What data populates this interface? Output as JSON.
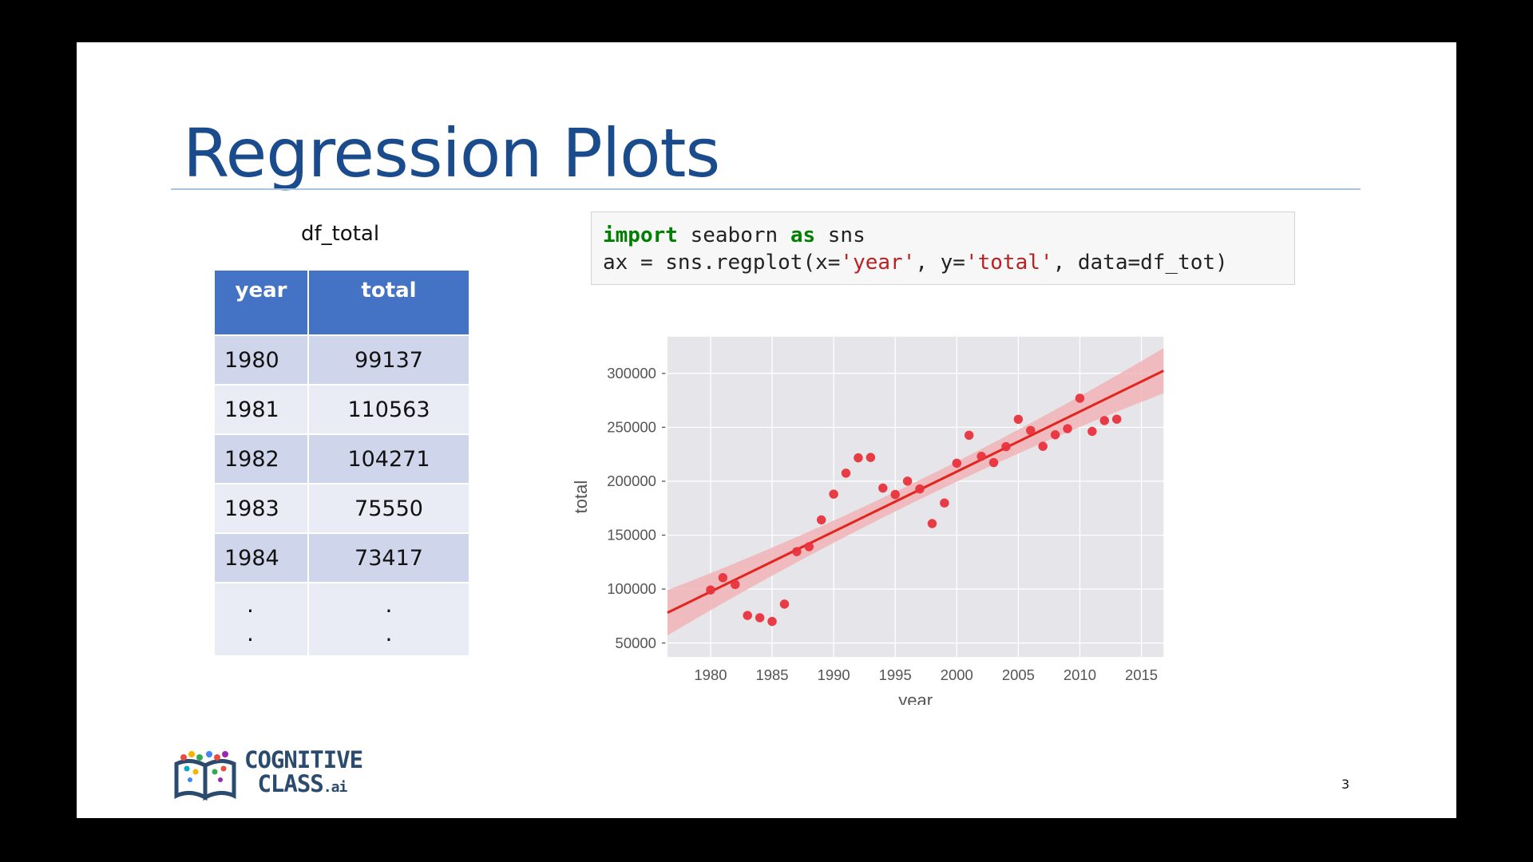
{
  "slide": {
    "title": "Regression Plots",
    "page_number": "3"
  },
  "table": {
    "caption": "df_total",
    "headers": [
      "year",
      "total"
    ],
    "rows": [
      [
        "1980",
        "99137"
      ],
      [
        "1981",
        "110563"
      ],
      [
        "1982",
        "104271"
      ],
      [
        "1983",
        "75550"
      ],
      [
        "1984",
        "73417"
      ]
    ],
    "ellipsis": "."
  },
  "code": {
    "line1": {
      "kw1": "import",
      "mid": " seaborn ",
      "kw2": "as",
      "end": " sns"
    },
    "line2": {
      "a": "ax = sns.regplot(x=",
      "s1": "'year'",
      "b": ", y=",
      "s2": "'total'",
      "c": ", data=df_tot)"
    }
  },
  "logo": {
    "line1": "COGNITIVE",
    "line2": "CLASS",
    "suffix": ".ai"
  },
  "chart_data": {
    "type": "scatter",
    "xlabel": "year",
    "ylabel": "total",
    "xlim": [
      1976.5,
      2016.8
    ],
    "ylim": [
      37000,
      334000
    ],
    "xticks": [
      1980,
      1985,
      1990,
      1995,
      2000,
      2005,
      2010,
      2015
    ],
    "yticks": [
      50000,
      100000,
      150000,
      200000,
      250000,
      300000
    ],
    "grid": true,
    "point_color": "#e8323c",
    "line_color": "#e2261f",
    "band_color": "#f2b0b3",
    "points": [
      [
        1980,
        99137
      ],
      [
        1981,
        110563
      ],
      [
        1982,
        104271
      ],
      [
        1983,
        75550
      ],
      [
        1984,
        73417
      ],
      [
        1985,
        69978
      ],
      [
        1986,
        86048
      ],
      [
        1987,
        134771
      ],
      [
        1988,
        139306
      ],
      [
        1989,
        164139
      ],
      [
        1990,
        188054
      ],
      [
        1991,
        207509
      ],
      [
        1992,
        221687
      ],
      [
        1993,
        222049
      ],
      [
        1994,
        193665
      ],
      [
        1995,
        187712
      ],
      [
        1996,
        200085
      ],
      [
        1997,
        192885
      ],
      [
        1998,
        160727
      ],
      [
        1999,
        179818
      ],
      [
        2000,
        216712
      ],
      [
        2001,
        242658
      ],
      [
        2002,
        223111
      ],
      [
        2003,
        217297
      ],
      [
        2004,
        232083
      ],
      [
        2005,
        257457
      ],
      [
        2006,
        247057
      ],
      [
        2007,
        232405
      ],
      [
        2008,
        243047
      ],
      [
        2009,
        248768
      ],
      [
        2010,
        276956
      ],
      [
        2011,
        246194
      ],
      [
        2012,
        256222
      ],
      [
        2013,
        257537
      ]
    ],
    "regression": {
      "slope": 5567.55,
      "intercept": -10926195.0
    },
    "band_halfwidth": {
      "ends": 21000,
      "center": 9000
    }
  }
}
